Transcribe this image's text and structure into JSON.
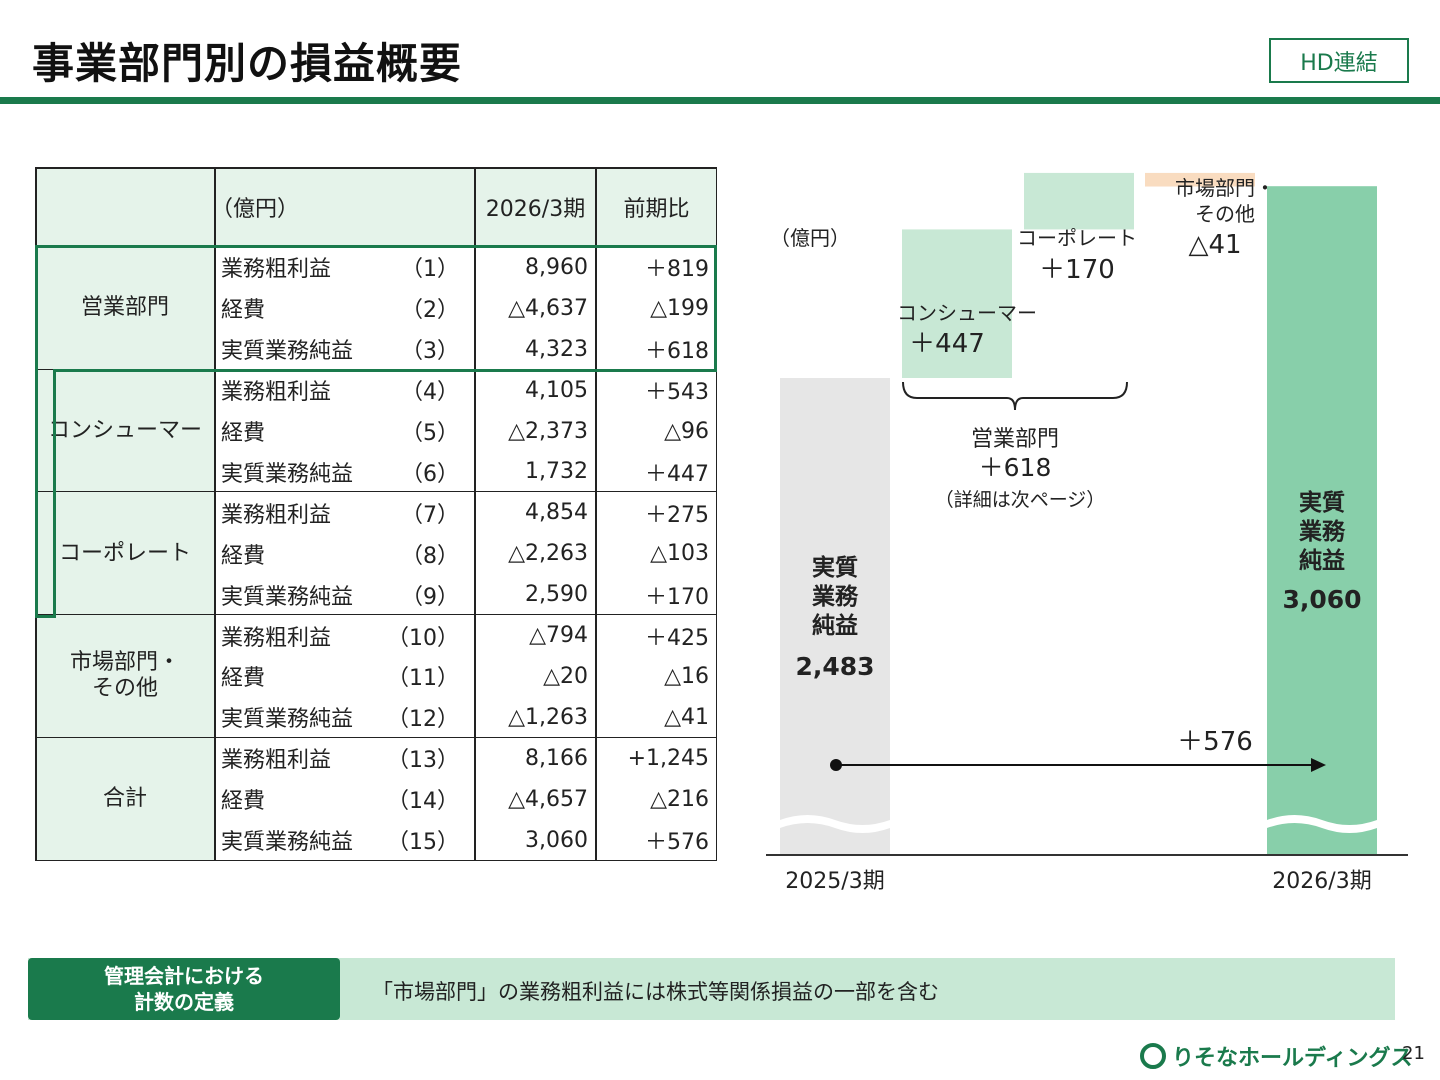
{
  "header": {
    "title": "事業部門別の損益概要",
    "badge": "HD連結"
  },
  "table": {
    "unit_label": "（億円）",
    "col_period": "2026/3期",
    "col_yoy": "前期比",
    "groups": [
      {
        "name": "営業部門",
        "rows": [
          {
            "item": "業務粗利益",
            "no": "（1）",
            "value": "8,960",
            "yoy": "＋819"
          },
          {
            "item": "経費",
            "no": "（2）",
            "value": "△4,637",
            "yoy": "△199"
          },
          {
            "item": "実質業務純益",
            "no": "（3）",
            "value": "4,323",
            "yoy": "＋618"
          }
        ]
      },
      {
        "name": "コンシューマー",
        "rows": [
          {
            "item": "業務粗利益",
            "no": "（4）",
            "value": "4,105",
            "yoy": "＋543"
          },
          {
            "item": "経費",
            "no": "（5）",
            "value": "△2,373",
            "yoy": "△96"
          },
          {
            "item": "実質業務純益",
            "no": "（6）",
            "value": "1,732",
            "yoy": "＋447"
          }
        ]
      },
      {
        "name": "コーポレート",
        "rows": [
          {
            "item": "業務粗利益",
            "no": "（7）",
            "value": "4,854",
            "yoy": "＋275"
          },
          {
            "item": "経費",
            "no": "（8）",
            "value": "△2,263",
            "yoy": "△103"
          },
          {
            "item": "実質業務純益",
            "no": "（9）",
            "value": "2,590",
            "yoy": "＋170"
          }
        ]
      },
      {
        "name": "市場部門・\nその他",
        "rows": [
          {
            "item": "業務粗利益",
            "no": "（10）",
            "value": "△794",
            "yoy": "＋425"
          },
          {
            "item": "経費",
            "no": "（11）",
            "value": "△20",
            "yoy": "△16"
          },
          {
            "item": "実質業務純益",
            "no": "（12）",
            "value": "△1,263",
            "yoy": "△41"
          }
        ]
      },
      {
        "name": "合計",
        "rows": [
          {
            "item": "業務粗利益",
            "no": "（13）",
            "value": "8,166",
            "yoy": "+1,245"
          },
          {
            "item": "経費",
            "no": "（14）",
            "value": "△4,657",
            "yoy": "△216"
          },
          {
            "item": "実質業務純益",
            "no": "（15）",
            "value": "3,060",
            "yoy": "＋576"
          }
        ]
      }
    ]
  },
  "chart_data": {
    "type": "bar",
    "unit_label": "（億円）",
    "categories": [
      "2025/3期",
      "コンシューマー",
      "コーポレート",
      "市場部門・その他",
      "2026/3期"
    ],
    "start": {
      "label": "実質\n業務\n純益",
      "value": 2483,
      "value_label": "2,483",
      "period": "2025/3期"
    },
    "steps": [
      {
        "label": "コンシューマー",
        "delta": 447,
        "delta_label": "＋447"
      },
      {
        "label": "コーポレート",
        "delta": 170,
        "delta_label": "＋170"
      },
      {
        "label": "市場部門・\nその他",
        "delta": -41,
        "delta_label": "△41"
      }
    ],
    "end": {
      "label": "実質\n業務\n純益",
      "value": 3060,
      "value_label": "3,060",
      "period": "2026/3期"
    },
    "brace": {
      "label": "営業部門",
      "value_label": "＋618",
      "note": "（詳細は次ページ）"
    },
    "total_change_label": "＋576",
    "colors": {
      "start": "#e6e6e6",
      "positive": "#c8e8d5",
      "negative": "#f9dcc0",
      "end": "#88cfaa",
      "arrow": "#111111"
    }
  },
  "footer": {
    "note_label": "管理会計における\n計数の定義",
    "note_text": "「市場部門」の業務粗利益には株式等関係損益の一部を含む",
    "company": "りそなホールディングス",
    "page": "21"
  }
}
